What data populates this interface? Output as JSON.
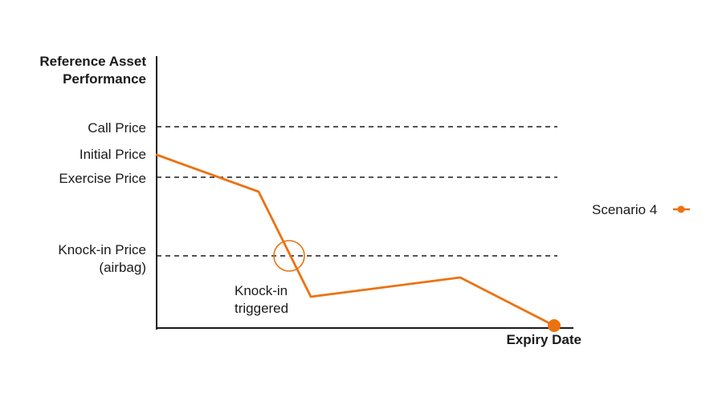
{
  "y_axis_title": [
    "Reference Asset",
    "Performance"
  ],
  "x_axis_title": "Expiry Date",
  "levels": {
    "call": "Call Price",
    "initial": "Initial Price",
    "exercise": "Exercise Price",
    "knockin": [
      "Knock-in Price",
      "(airbag)"
    ]
  },
  "annotation": [
    "Knock-in",
    "triggered"
  ],
  "legend": {
    "label": "Scenario 4"
  },
  "colors": {
    "series": "#ec7211",
    "axis": "#1a1a1a",
    "dashed": "#1a1a1a"
  }
}
